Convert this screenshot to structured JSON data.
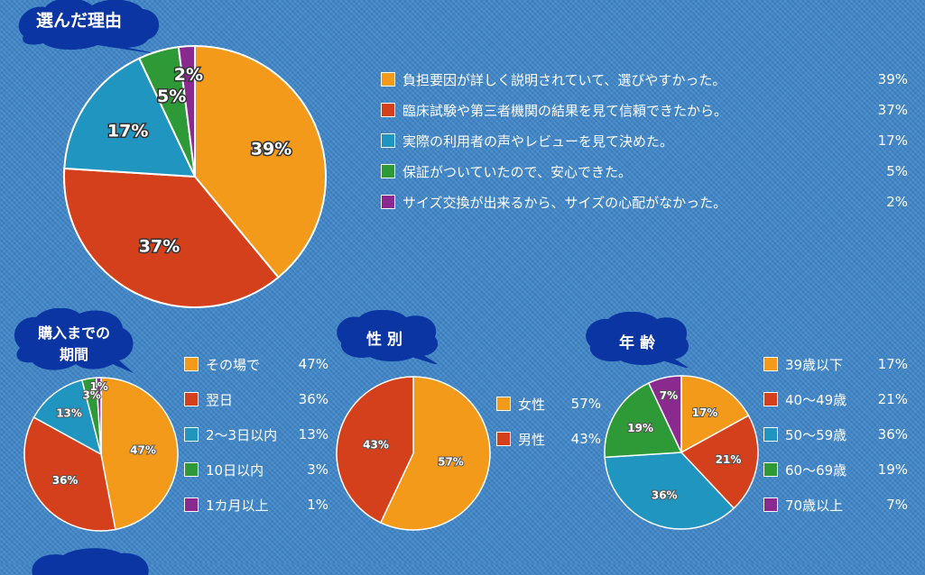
{
  "chart_data": [
    {
      "type": "pie",
      "title": "選んだ理由",
      "categories": [
        "負担要因が詳しく説明されていて、選びやすかった。",
        "臨床試験や第三者機関の結果を見て信頼できたから。",
        "実際の利用者の声やレビューを見て決めた。",
        "保証がついていたので、安心できた。",
        "サイズ交換が出来るから、サイズの心配がなかった。"
      ],
      "values": [
        39,
        37,
        17,
        5,
        2
      ],
      "labels": [
        "39%",
        "37%",
        "17%",
        "5%",
        "2%"
      ],
      "colors": [
        "#f39a1b",
        "#d5401c",
        "#1f95c0",
        "#2e9a37",
        "#8a2a8f"
      ]
    },
    {
      "type": "pie",
      "title": "購入までの期間",
      "title_lines": [
        "購入までの",
        "期間"
      ],
      "categories": [
        "その場で",
        "翌日",
        "2〜3日以内",
        "10日以内",
        "1カ月以上"
      ],
      "values": [
        47,
        36,
        13,
        3,
        1
      ],
      "labels": [
        "47%",
        "36%",
        "13%",
        "3%",
        "1%"
      ],
      "colors": [
        "#f39a1b",
        "#d5401c",
        "#1f95c0",
        "#2e9a37",
        "#8a2a8f"
      ]
    },
    {
      "type": "pie",
      "title": "性 別",
      "categories": [
        "女性",
        "男性"
      ],
      "values": [
        57,
        43
      ],
      "labels": [
        "57%",
        "43%"
      ],
      "colors": [
        "#f39a1b",
        "#d5401c"
      ]
    },
    {
      "type": "pie",
      "title": "年 齢",
      "categories": [
        "39歳以下",
        "40〜49歳",
        "50〜59歳",
        "60〜69歳",
        "70歳以上"
      ],
      "values": [
        17,
        21,
        36,
        19,
        7
      ],
      "labels": [
        "17%",
        "21%",
        "36%",
        "19%",
        "7%"
      ],
      "colors": [
        "#f39a1b",
        "#d5401c",
        "#1f95c0",
        "#2e9a37",
        "#8a2a8f"
      ]
    }
  ]
}
